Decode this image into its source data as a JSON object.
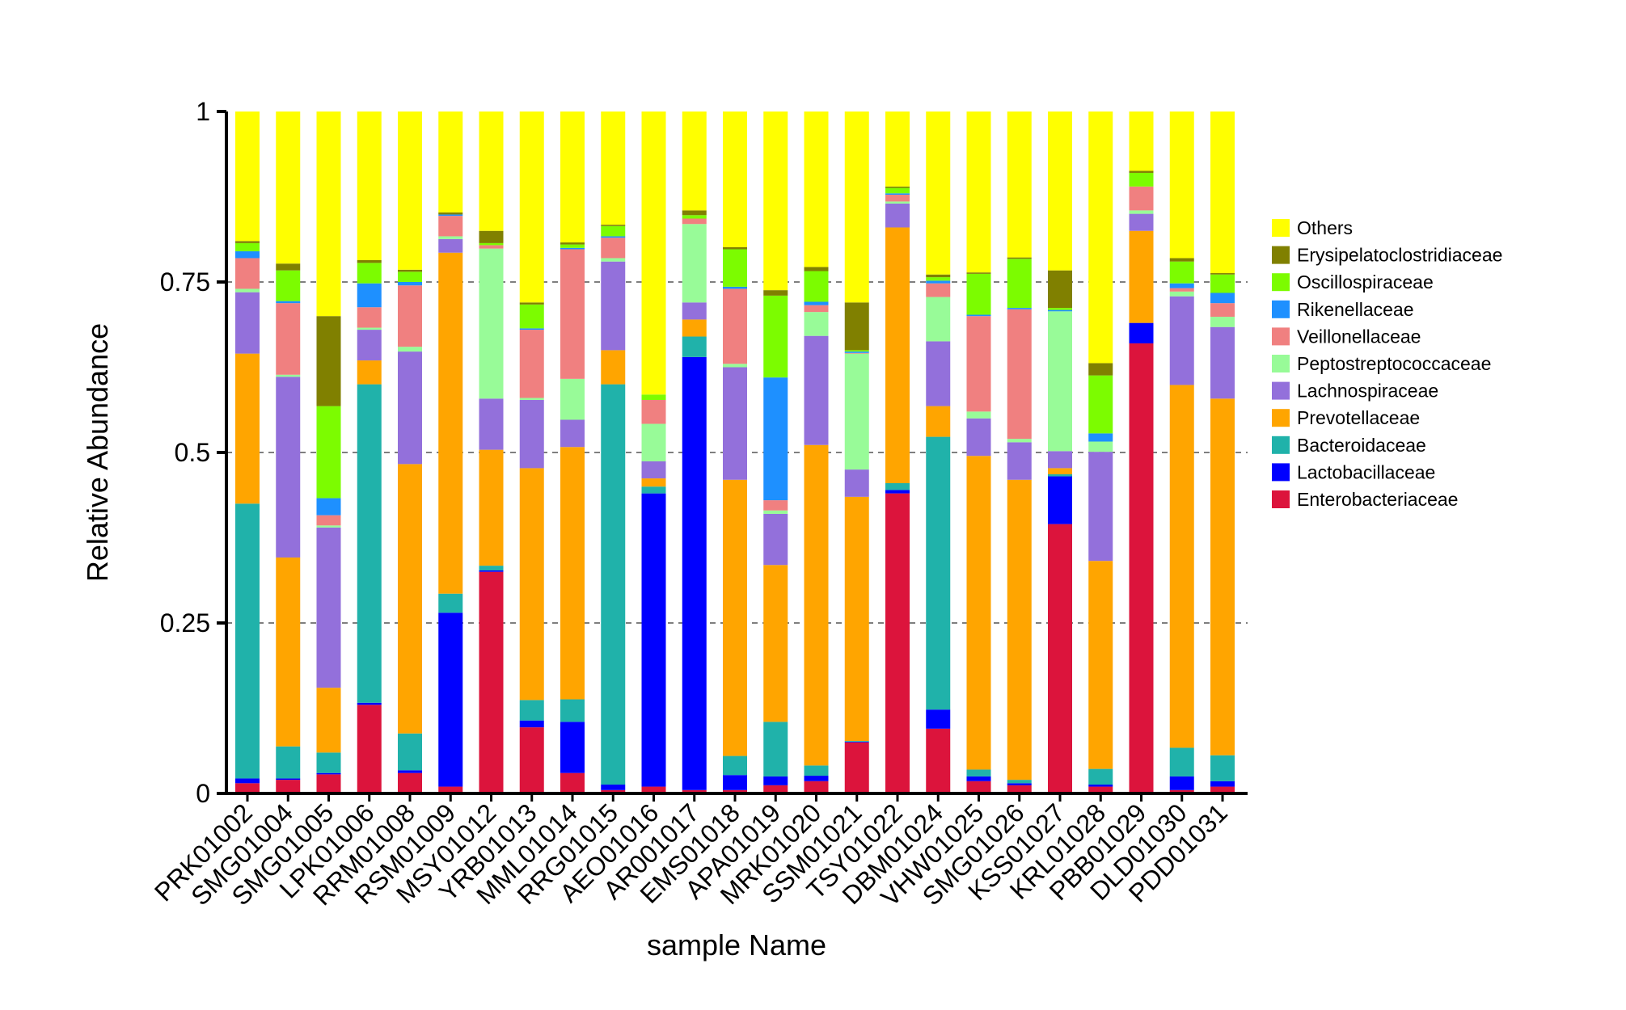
{
  "chart_data": {
    "type": "bar",
    "stacked": true,
    "title": "",
    "xlabel": "sample Name",
    "ylabel": "Relative Abundance",
    "ylim": [
      0,
      1
    ],
    "yticks": [
      "0",
      "0.25",
      "0.5",
      "0.75",
      "1"
    ],
    "grid": "dashed horizontal",
    "legend_position": "right",
    "categories": [
      "PRK01002",
      "SMG01004",
      "SMG01005",
      "LPK01006",
      "RRM01008",
      "RSM01009",
      "MSY01012",
      "YRB01013",
      "MML01014",
      "RRG01015",
      "AEO01016",
      "AR001017",
      "EMS01018",
      "APA01019",
      "MRK01020",
      "SSM01021",
      "TSY01022",
      "DBM01024",
      "VHW01025",
      "SMG01026",
      "KSS01027",
      "KRL01028",
      "PBB01029",
      "DLD01030",
      "PDD01031"
    ],
    "series": [
      {
        "name": "Enterobacteriaceae",
        "color": "#DC143C",
        "values": [
          0.015,
          0.02,
          0.028,
          0.13,
          0.03,
          0.01,
          0.325,
          0.097,
          0.03,
          0.005,
          0.01,
          0.005,
          0.005,
          0.012,
          0.018,
          0.075,
          0.44,
          0.095,
          0.018,
          0.012,
          0.395,
          0.01,
          0.66,
          0.005,
          0.01
        ]
      },
      {
        "name": "Lactobacillaceae",
        "color": "#0000FF",
        "values": [
          0.007,
          0.002,
          0.002,
          0.003,
          0.004,
          0.255,
          0.002,
          0.01,
          0.075,
          0.008,
          0.43,
          0.635,
          0.022,
          0.013,
          0.008,
          0.001,
          0.005,
          0.028,
          0.007,
          0.003,
          0.07,
          0.003,
          0.03,
          0.02,
          0.008
        ]
      },
      {
        "name": "Bacteroidaceae",
        "color": "#20B2AA",
        "values": [
          0.403,
          0.047,
          0.03,
          0.467,
          0.054,
          0.028,
          0.007,
          0.03,
          0.033,
          0.587,
          0.01,
          0.03,
          0.028,
          0.08,
          0.015,
          0.001,
          0.01,
          0.4,
          0.01,
          0.005,
          0.003,
          0.023,
          0.0,
          0.042,
          0.038
        ]
      },
      {
        "name": "Prevotellaceae",
        "color": "#FFA500",
        "values": [
          0.22,
          0.277,
          0.095,
          0.035,
          0.395,
          0.5,
          0.17,
          0.34,
          0.37,
          0.05,
          0.012,
          0.025,
          0.405,
          0.23,
          0.47,
          0.358,
          0.375,
          0.045,
          0.46,
          0.44,
          0.009,
          0.305,
          0.135,
          0.532,
          0.523
        ]
      },
      {
        "name": "Lachnospiraceae",
        "color": "#9370DB",
        "values": [
          0.09,
          0.265,
          0.235,
          0.045,
          0.165,
          0.02,
          0.075,
          0.1,
          0.04,
          0.13,
          0.025,
          0.025,
          0.165,
          0.075,
          0.16,
          0.04,
          0.035,
          0.095,
          0.055,
          0.055,
          0.025,
          0.16,
          0.025,
          0.13,
          0.105
        ]
      },
      {
        "name": "Peptostreptococcaceae",
        "color": "#98FB98",
        "values": [
          0.005,
          0.003,
          0.003,
          0.003,
          0.007,
          0.004,
          0.22,
          0.003,
          0.06,
          0.005,
          0.055,
          0.115,
          0.005,
          0.005,
          0.035,
          0.17,
          0.003,
          0.065,
          0.01,
          0.005,
          0.205,
          0.015,
          0.005,
          0.007,
          0.015
        ]
      },
      {
        "name": "Veillonellaceae",
        "color": "#F08080",
        "values": [
          0.045,
          0.105,
          0.015,
          0.03,
          0.09,
          0.03,
          0.005,
          0.1,
          0.19,
          0.03,
          0.035,
          0.008,
          0.11,
          0.015,
          0.01,
          0.001,
          0.01,
          0.02,
          0.14,
          0.19,
          0.0,
          0.0,
          0.035,
          0.005,
          0.02
        ]
      },
      {
        "name": "Rikenellaceae",
        "color": "#1E90FF",
        "values": [
          0.01,
          0.003,
          0.025,
          0.035,
          0.005,
          0.002,
          0.0,
          0.002,
          0.002,
          0.002,
          0.0,
          0.0,
          0.003,
          0.18,
          0.005,
          0.002,
          0.002,
          0.004,
          0.002,
          0.002,
          0.002,
          0.012,
          0.0,
          0.007,
          0.015
        ]
      },
      {
        "name": "Oscillospiraceae",
        "color": "#7CFC00",
        "values": [
          0.012,
          0.045,
          0.135,
          0.03,
          0.015,
          0.0,
          0.003,
          0.035,
          0.005,
          0.015,
          0.008,
          0.005,
          0.055,
          0.12,
          0.045,
          0.002,
          0.008,
          0.005,
          0.06,
          0.072,
          0.003,
          0.085,
          0.02,
          0.032,
          0.027
        ]
      },
      {
        "name": "Erysipelatoclostridiaceae",
        "color": "#808000",
        "values": [
          0.003,
          0.01,
          0.132,
          0.004,
          0.003,
          0.003,
          0.018,
          0.003,
          0.003,
          0.002,
          0.0,
          0.007,
          0.003,
          0.008,
          0.006,
          0.07,
          0.002,
          0.004,
          0.002,
          0.002,
          0.055,
          0.018,
          0.003,
          0.005,
          0.002
        ]
      },
      {
        "name": "Others",
        "color": "#FFFF00",
        "values": [
          0.19,
          0.223,
          0.3,
          0.218,
          0.232,
          0.148,
          0.175,
          0.28,
          0.192,
          0.166,
          0.415,
          0.145,
          0.199,
          0.262,
          0.228,
          0.28,
          0.11,
          0.239,
          0.236,
          0.214,
          0.233,
          0.369,
          0.087,
          0.215,
          0.237
        ]
      }
    ],
    "legend_order": [
      "Others",
      "Erysipelatoclostridiaceae",
      "Oscillospiraceae",
      "Rikenellaceae",
      "Veillonellaceae",
      "Peptostreptococcaceae",
      "Lachnospiraceae",
      "Prevotellaceae",
      "Bacteroidaceae",
      "Lactobacillaceae",
      "Enterobacteriaceae"
    ]
  }
}
